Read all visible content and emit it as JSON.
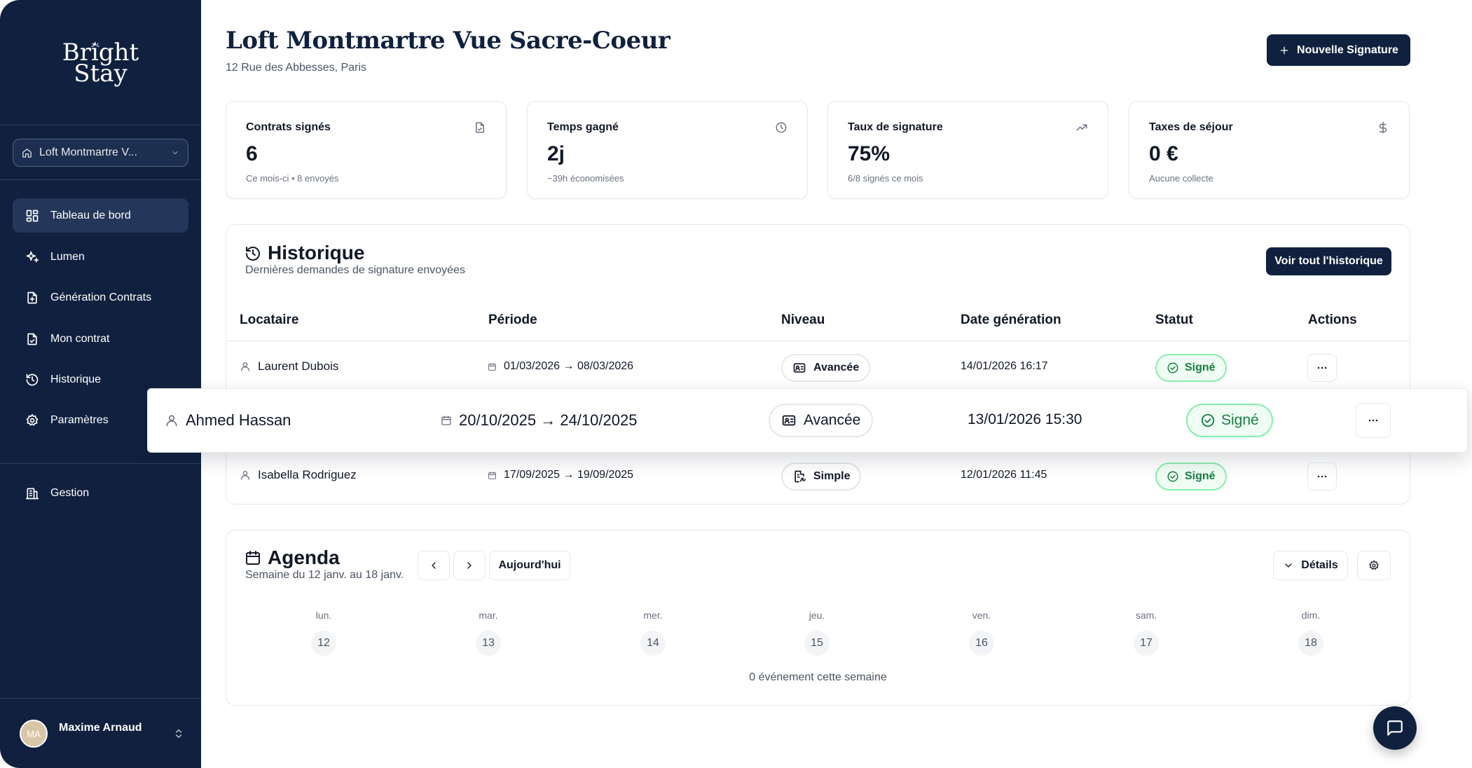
{
  "brand": {
    "line1": "Bright",
    "line2": "Stay"
  },
  "sidebar": {
    "property_select": "Loft Montmartre V...",
    "items": [
      {
        "label": "Tableau de bord",
        "icon": "layout-grid-icon"
      },
      {
        "label": "Lumen",
        "icon": "sparkles-icon"
      },
      {
        "label": "Génération Contrats",
        "icon": "file-plus-icon"
      },
      {
        "label": "Mon contrat",
        "icon": "file-check-icon"
      },
      {
        "label": "Historique",
        "icon": "history-icon"
      },
      {
        "label": "Paramètres",
        "icon": "gear-icon"
      }
    ],
    "management": {
      "label": "Gestion",
      "icon": "building-icon"
    },
    "user": {
      "initials": "MA",
      "name": "Maxime Arnaud"
    }
  },
  "header": {
    "title": "Loft Montmartre Vue Sacre-Coeur",
    "address": "12 Rue des Abbesses, Paris",
    "new_signature_button": "Nouvelle Signature"
  },
  "stats": [
    {
      "title": "Contrats signés",
      "value": "6",
      "subtitle": "Ce mois-ci • 8 envoyés",
      "icon": "file-check-icon"
    },
    {
      "title": "Temps gagné",
      "value": "2j",
      "subtitle": "~39h économisées",
      "icon": "clock-icon"
    },
    {
      "title": "Taux de signature",
      "value": "75%",
      "subtitle": "6/8 signés ce mois",
      "icon": "trending-up-icon"
    },
    {
      "title": "Taxes de séjour",
      "value": "0 €",
      "subtitle": "Aucune collecte",
      "icon": "dollar-icon"
    }
  ],
  "history": {
    "title": "Historique",
    "subtitle": "Dernières demandes de signature envoyées",
    "view_all_button": "Voir tout l'historique",
    "columns": [
      "Locataire",
      "Période",
      "Niveau",
      "Date génération",
      "Statut",
      "Actions"
    ],
    "rows": [
      {
        "tenant": "Laurent Dubois",
        "period": "01/03/2026 → 08/03/2026",
        "level": "Avancée",
        "date": "14/01/2026 16:17",
        "status": "Signé"
      },
      {
        "tenant": "Ahmed Hassan",
        "period": "20/10/2025 → 24/10/2025",
        "level": "Avancée",
        "date": "13/01/2026 15:30",
        "status": "Signé"
      },
      {
        "tenant": "Isabella Rodriguez",
        "period": "17/09/2025 → 19/09/2025",
        "level": "Simple",
        "date": "12/01/2026 11:45",
        "status": "Signé"
      }
    ]
  },
  "agenda": {
    "title": "Agenda",
    "subtitle": "Semaine du 12 janv. au 18 janv.",
    "today_button": "Aujourd'hui",
    "details_button": "Détails",
    "days": [
      {
        "name": "lun.",
        "date": "12"
      },
      {
        "name": "mar.",
        "date": "13"
      },
      {
        "name": "mer.",
        "date": "14"
      },
      {
        "name": "jeu.",
        "date": "15"
      },
      {
        "name": "ven.",
        "date": "16"
      },
      {
        "name": "sam.",
        "date": "17"
      },
      {
        "name": "dim.",
        "date": "18"
      }
    ],
    "empty_text": "0 événement cette semaine"
  },
  "colors": {
    "navy": "#10213f",
    "success": "#15803d",
    "success_border": "#86efac"
  }
}
